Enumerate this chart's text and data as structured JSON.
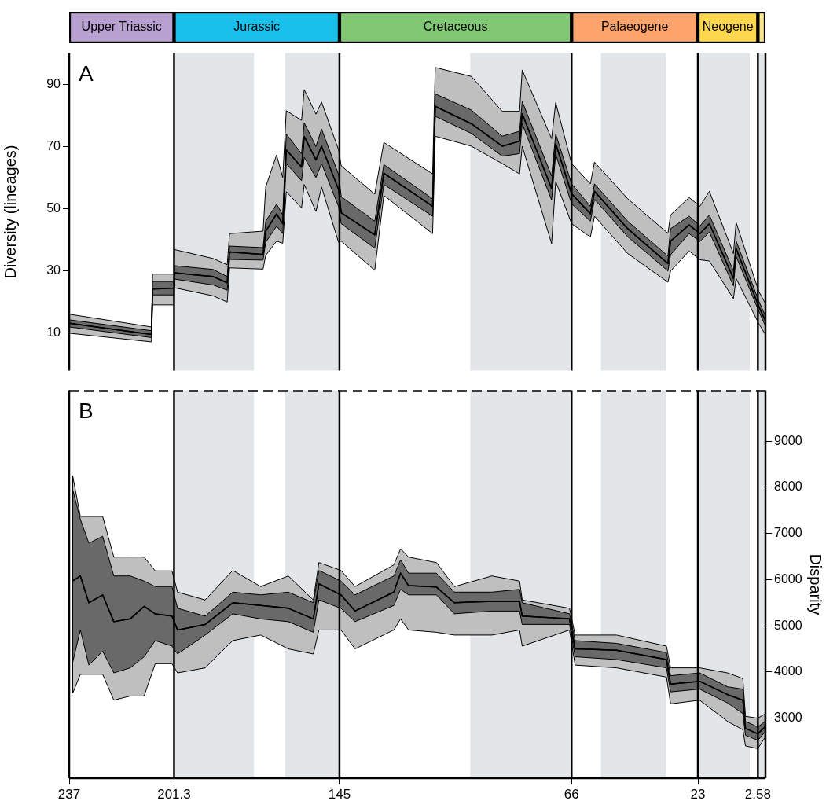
{
  "chart_data": [
    {
      "type": "bar",
      "orientation": "horizontal",
      "stacked": true,
      "tick_labels": false,
      "categories": [
        null
      ],
      "xlim": [
        237,
        0
      ],
      "series": [
        {
          "color": "#fbe78a",
          "values": [
            2.58
          ]
        },
        {
          "name": "Neogene",
          "color": "#fdd84f",
          "values": [
            20.42
          ]
        },
        {
          "name": "Palaeogene",
          "color": "#fda46c",
          "values": [
            43
          ]
        },
        {
          "name": "Cretaceous",
          "color": "#80c873",
          "values": [
            79
          ]
        },
        {
          "name": "Jurassic",
          "color": "#19c0ec",
          "values": [
            56.3
          ]
        },
        {
          "name": "Upper Triassic",
          "color": "#b8a0d0",
          "values": [
            35.7
          ]
        }
      ]
    },
    {
      "type": "line",
      "ylabel": "Diversity (lineages)",
      "annotations": [
        "A"
      ],
      "tick_labels": "y",
      "xlim": [
        237,
        0
      ],
      "ylim": [
        -2,
        100
      ],
      "yticks": [
        10,
        30,
        50,
        70,
        90
      ],
      "x": [
        237,
        209,
        208.6,
        201.3,
        201.2,
        188,
        183.2,
        182.4,
        171,
        170.1,
        166.4,
        164.3,
        163.1,
        157.9,
        157,
        153,
        151.1,
        145.3,
        144.4,
        133,
        129.9,
        113.3,
        112.4,
        100.1,
        89.6,
        83.7,
        82.8,
        72.8,
        71.4,
        66,
        59.6,
        58.2,
        46.9,
        33.2,
        32.3,
        26,
        22.3,
        19.1,
        10.9,
        10,
        2.3,
        0
      ],
      "series": [
        {
          "color": "#000000",
          "values": [
            13.2,
            9.6,
            24.2,
            24.5,
            29.4,
            28.2,
            26.2,
            36.1,
            35.3,
            42.8,
            48.3,
            45.2,
            68.9,
            63.4,
            73.2,
            65.7,
            70.1,
            56.2,
            48.7,
            41.6,
            61.4,
            50.8,
            82.9,
            77.3,
            70.1,
            71.7,
            80.5,
            56.5,
            70.9,
            54.8,
            48.4,
            55.6,
            43.6,
            32.4,
            39.6,
            44.8,
            42,
            45.2,
            27.6,
            37.2,
            18.7,
            13.9
          ],
          "lower": [
            10,
            7.2,
            19.1,
            19.1,
            24.6,
            22,
            20,
            31,
            30.6,
            35,
            39.6,
            38.9,
            55.5,
            50.3,
            57.8,
            49.1,
            57,
            39.2,
            39.6,
            30.2,
            54.3,
            42,
            73.3,
            70.1,
            64.5,
            61.2,
            70.1,
            38.8,
            58.8,
            45.2,
            40.9,
            47.6,
            35.6,
            26.4,
            30,
            36.4,
            33.6,
            33.2,
            21.1,
            27.6,
            13.1,
            9.5
          ],
          "upper": [
            16.1,
            12,
            29,
            29,
            36.9,
            34,
            32,
            42,
            42.8,
            57,
            67.3,
            60,
            81.5,
            78.4,
            88.3,
            80.4,
            84.3,
            68.9,
            63.8,
            54.7,
            71.3,
            61.2,
            95.4,
            92.5,
            81.3,
            81.3,
            94.6,
            72.5,
            84.1,
            64.5,
            58,
            65,
            53.2,
            42.1,
            48,
            53.6,
            50.8,
            55.6,
            35.6,
            45.6,
            23.5,
            19.5
          ]
        },
        {
          "color": "#000000",
          "values": [
            13.2,
            9.6,
            24.2,
            24.5,
            29.4,
            28.2,
            26.2,
            36.1,
            35.3,
            42.8,
            48.3,
            45.2,
            68.9,
            63.4,
            73.2,
            65.7,
            70.1,
            56.2,
            48.7,
            41.6,
            61.4,
            50.8,
            82.9,
            77.3,
            70.1,
            71.7,
            80.5,
            56.5,
            70.9,
            54.8,
            48.4,
            55.6,
            43.6,
            32.4,
            39.6,
            44.8,
            42,
            45.2,
            27.6,
            37.2,
            18.7,
            13.9
          ],
          "lower": [
            12,
            8.6,
            22.3,
            22.3,
            27.4,
            25.5,
            23.8,
            33.7,
            33.5,
            39.2,
            44.4,
            42,
            64.5,
            59,
            66.5,
            60,
            64.5,
            50.7,
            45.2,
            37.3,
            57.8,
            47.6,
            79.7,
            74.2,
            66.9,
            67.7,
            77.3,
            52.8,
            67.5,
            51.6,
            46,
            53,
            41,
            30,
            35.2,
            42,
            39.5,
            42.5,
            25.2,
            34.7,
            17.1,
            12.3
          ],
          "upper": [
            14.3,
            10.8,
            26.6,
            26.6,
            31.7,
            30.5,
            28.2,
            38,
            37.5,
            46,
            51.5,
            48,
            74,
            67.7,
            77.6,
            70,
            75.6,
            61,
            53.9,
            46,
            64.2,
            53.2,
            86.9,
            81.7,
            73.3,
            74.9,
            84.5,
            60.5,
            74,
            58,
            50.8,
            58,
            46,
            34.8,
            43.6,
            47.6,
            44.5,
            48,
            30,
            39.7,
            20.4,
            15.5
          ]
        }
      ],
      "bands": [
        {
          "axis": "x",
          "from": 201.3,
          "to": 174.1,
          "color": "#e3e6e8"
        },
        {
          "axis": "x",
          "from": 163.5,
          "to": 145,
          "color": "#e3e6e8"
        },
        {
          "axis": "x",
          "from": 100.5,
          "to": 66,
          "color": "#e3e6e8"
        },
        {
          "axis": "x",
          "from": 56,
          "to": 33.9,
          "color": "#e3e6e8"
        },
        {
          "axis": "x",
          "from": 23,
          "to": 5.33,
          "color": "#e3e6e8"
        },
        {
          "axis": "x",
          "from": 2.58,
          "to": 0,
          "color": "#e3e6e8"
        }
      ],
      "ref_lines": [
        {
          "axis": "x",
          "value": 201.3
        },
        {
          "axis": "x",
          "value": 145
        },
        {
          "axis": "x",
          "value": 66
        },
        {
          "axis": "x",
          "value": 23
        },
        {
          "axis": "x",
          "value": 2.58
        }
      ]
    },
    {
      "type": "line",
      "y2label": "Disparity",
      "annotations": [
        "B"
      ],
      "xlim": [
        237,
        0
      ],
      "xticks": [
        237,
        201.3,
        145,
        66,
        23,
        2.58
      ],
      "y2lim": [
        1700,
        10100
      ],
      "y2ticks": [
        3000,
        4000,
        5000,
        6000,
        7000,
        8000,
        9000
      ],
      "x": [
        235.8,
        233.2,
        230.3,
        225.6,
        221.8,
        216.2,
        211.5,
        207.7,
        202,
        200.1,
        190.7,
        181.3,
        171.8,
        162.4,
        153.9,
        152,
        144.5,
        139.7,
        126.5,
        124.2,
        121.5,
        112,
        105.9,
        93.1,
        83.7,
        82.8,
        66.7,
        64.8,
        50.7,
        33.7,
        32.3,
        22.4,
        12.9,
        7.7,
        6.8,
        2.6,
        0.2
      ],
      "series": [
        {
          "color": "#000000",
          "axis": "y2",
          "values": [
            5970,
            6080,
            5500,
            5670,
            5090,
            5150,
            5420,
            5260,
            5210,
            4910,
            5030,
            5500,
            5440,
            5380,
            5150,
            5910,
            5670,
            5320,
            5730,
            6140,
            5870,
            5840,
            5500,
            5530,
            5530,
            5210,
            5150,
            4500,
            4470,
            4270,
            3740,
            3800,
            3510,
            3390,
            2780,
            2660,
            2810
          ],
          "lower": [
            3540,
            3950,
            3950,
            3950,
            3390,
            3480,
            3480,
            4180,
            4180,
            3980,
            4090,
            4680,
            4800,
            4500,
            4390,
            4910,
            4910,
            4500,
            4910,
            5150,
            4910,
            4860,
            4800,
            4800,
            4910,
            4560,
            4910,
            4150,
            4090,
            3890,
            3310,
            3390,
            2930,
            2750,
            2400,
            2340,
            2580
          ],
          "upper": [
            8250,
            7370,
            7370,
            7370,
            6490,
            6490,
            6490,
            6190,
            6190,
            5730,
            5560,
            6200,
            5850,
            6080,
            5560,
            6370,
            6200,
            5850,
            6320,
            6670,
            6490,
            6370,
            5850,
            6080,
            5970,
            5560,
            5380,
            4800,
            4800,
            4560,
            4090,
            4090,
            3980,
            3860,
            3040,
            3000,
            3090
          ]
        },
        {
          "color": "#000000",
          "axis": "y2",
          "values": [
            5970,
            6080,
            5500,
            5670,
            5090,
            5150,
            5420,
            5260,
            5210,
            4910,
            5030,
            5500,
            5440,
            5380,
            5150,
            5910,
            5670,
            5320,
            5730,
            6140,
            5870,
            5840,
            5500,
            5530,
            5530,
            5210,
            5150,
            4500,
            4470,
            4270,
            3740,
            3800,
            3510,
            3390,
            2780,
            2660,
            2810
          ],
          "lower": [
            4210,
            4910,
            4150,
            4450,
            3980,
            4090,
            4330,
            4680,
            4560,
            4390,
            4800,
            5260,
            5150,
            5090,
            4860,
            5560,
            5380,
            5090,
            5440,
            5790,
            5670,
            5670,
            5260,
            5320,
            5320,
            5030,
            5030,
            4330,
            4270,
            4090,
            3570,
            3630,
            3330,
            3100,
            2630,
            2520,
            2700
          ],
          "upper": [
            7950,
            7310,
            6790,
            6940,
            6080,
            6080,
            5970,
            5850,
            5850,
            5380,
            5210,
            5730,
            5670,
            5730,
            5500,
            6200,
            5970,
            5670,
            6080,
            6430,
            6140,
            6140,
            5730,
            5730,
            5790,
            5500,
            5260,
            4680,
            4620,
            4420,
            3920,
            3980,
            3680,
            3630,
            2930,
            2810,
            2930
          ]
        }
      ],
      "bands": [
        {
          "axis": "x",
          "from": 201.3,
          "to": 174.1,
          "color": "#e3e6e8"
        },
        {
          "axis": "x",
          "from": 163.5,
          "to": 145,
          "color": "#e3e6e8"
        },
        {
          "axis": "x",
          "from": 100.5,
          "to": 66,
          "color": "#e3e6e8"
        },
        {
          "axis": "x",
          "from": 56,
          "to": 33.9,
          "color": "#e3e6e8"
        },
        {
          "axis": "x",
          "from": 23,
          "to": 5.33,
          "color": "#e3e6e8"
        },
        {
          "axis": "x",
          "from": 2.58,
          "to": 0,
          "color": "#e3e6e8"
        }
      ],
      "ref_lines": [
        {
          "axis": "x",
          "value": 201.3
        },
        {
          "axis": "x",
          "value": 145
        },
        {
          "axis": "x",
          "value": 66
        },
        {
          "axis": "x",
          "value": 23
        },
        {
          "axis": "x",
          "value": 2.58
        }
      ]
    }
  ]
}
